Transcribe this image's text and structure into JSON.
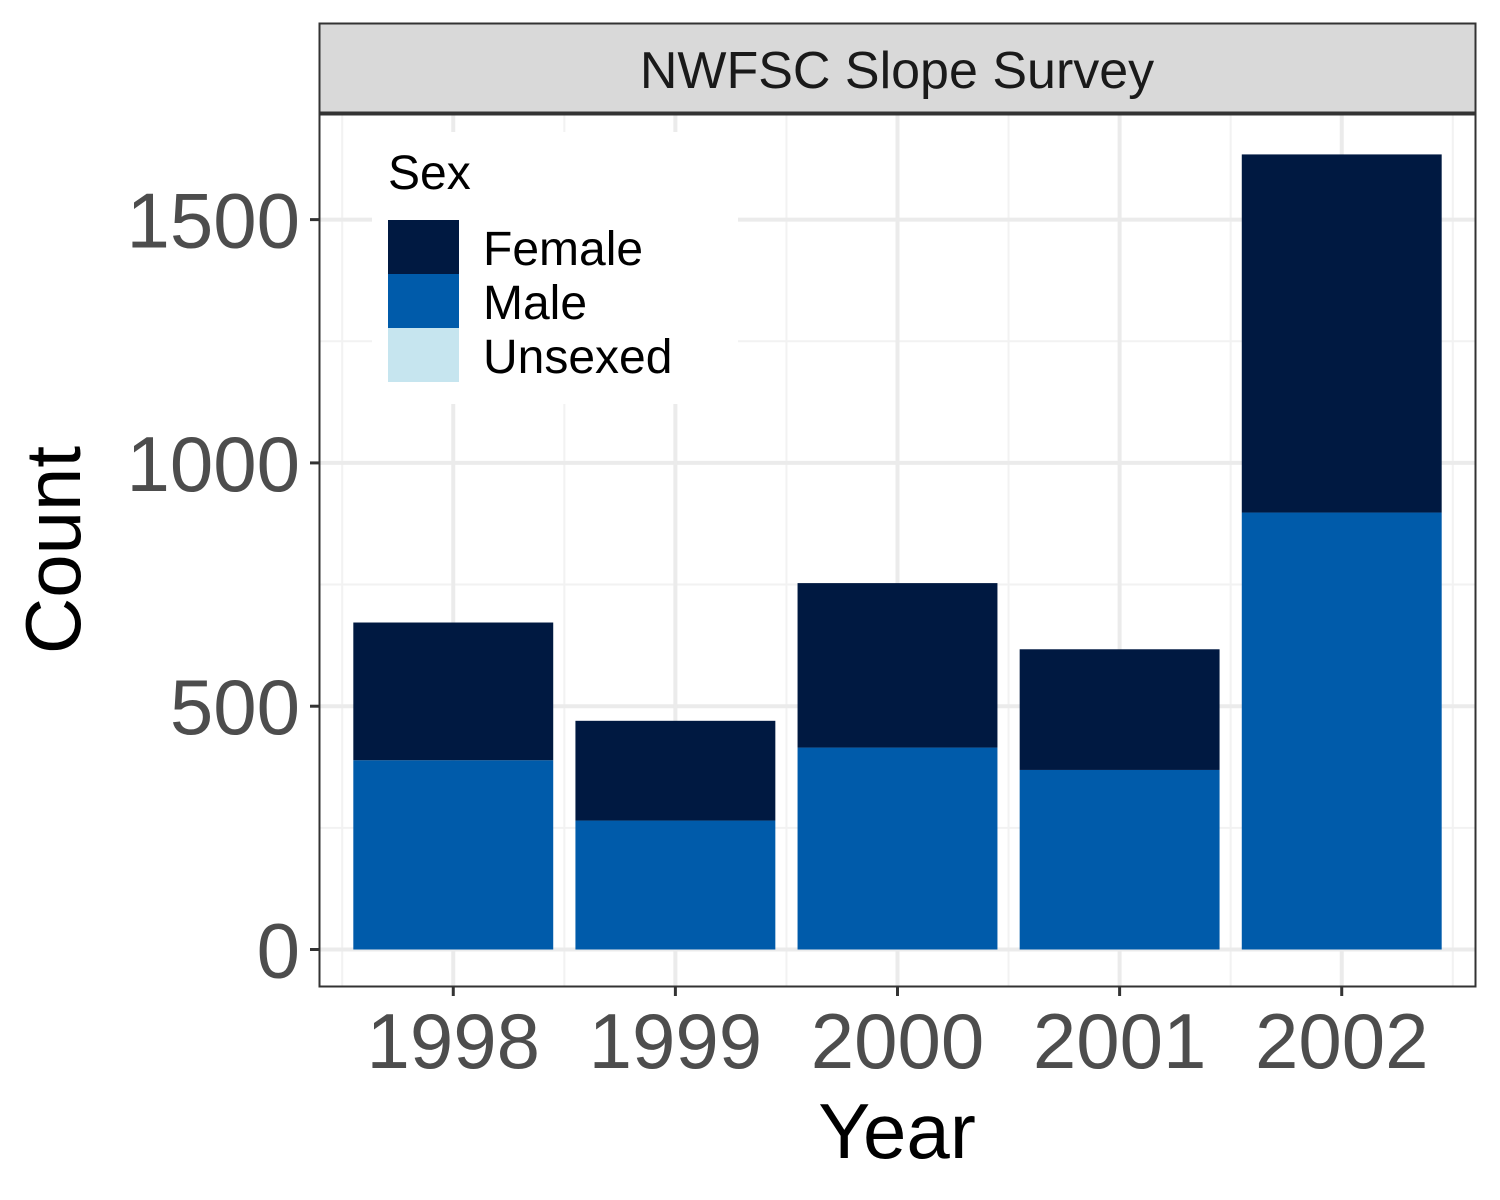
{
  "chart_data": {
    "type": "bar",
    "stacked": true,
    "panel_title": "NWFSC Slope Survey",
    "xlabel": "Year",
    "ylabel": "Count",
    "categories": [
      "1998",
      "1999",
      "2000",
      "2001",
      "2002"
    ],
    "ylim": [
      -75,
      1715
    ],
    "y_ticks": [
      "0",
      "500",
      "1000",
      "1500"
    ],
    "grid": true,
    "legend": {
      "title": "Sex",
      "position": "top-left",
      "entries": [
        "Female",
        "Male",
        "Unsexed"
      ]
    },
    "series": [
      {
        "name": "Male",
        "color": "#005BAA",
        "values": [
          389,
          265,
          415,
          369,
          898
        ]
      },
      {
        "name": "Female",
        "color": "#001941",
        "values": [
          283,
          205,
          338,
          248,
          736
        ]
      },
      {
        "name": "Unsexed",
        "color": "#C6E5EF",
        "values": [
          0,
          0,
          0,
          0,
          0
        ]
      }
    ]
  }
}
